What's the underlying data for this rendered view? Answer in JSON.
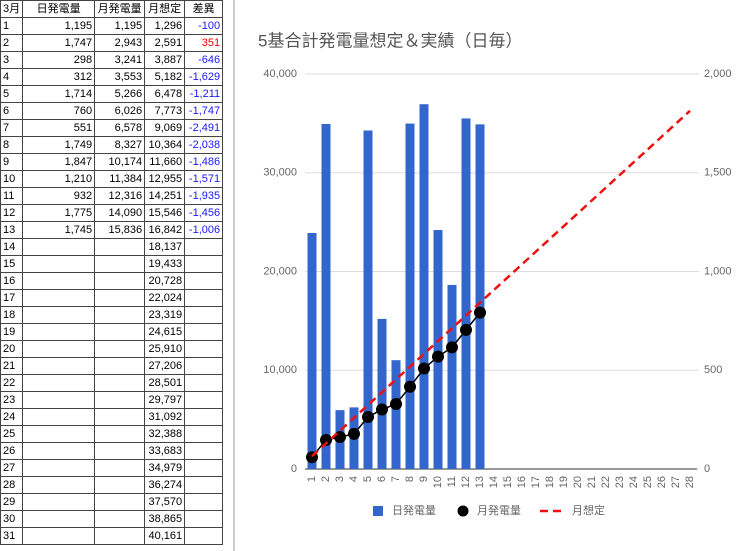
{
  "table": {
    "header": [
      "3月",
      "日発電量",
      "月発電量",
      "月想定",
      "差異"
    ],
    "rows": [
      [
        "1",
        "1,195",
        "1,195",
        "1,296",
        "-100"
      ],
      [
        "2",
        "1,747",
        "2,943",
        "2,591",
        "351"
      ],
      [
        "3",
        "298",
        "3,241",
        "3,887",
        "-646"
      ],
      [
        "4",
        "312",
        "3,553",
        "5,182",
        "-1,629"
      ],
      [
        "5",
        "1,714",
        "5,266",
        "6,478",
        "-1,211"
      ],
      [
        "6",
        "760",
        "6,026",
        "7,773",
        "-1,747"
      ],
      [
        "7",
        "551",
        "6,578",
        "9,069",
        "-2,491"
      ],
      [
        "8",
        "1,749",
        "8,327",
        "10,364",
        "-2,038"
      ],
      [
        "9",
        "1,847",
        "10,174",
        "11,660",
        "-1,486"
      ],
      [
        "10",
        "1,210",
        "11,384",
        "12,955",
        "-1,571"
      ],
      [
        "11",
        "932",
        "12,316",
        "14,251",
        "-1,935"
      ],
      [
        "12",
        "1,775",
        "14,090",
        "15,546",
        "-1,456"
      ],
      [
        "13",
        "1,745",
        "15,836",
        "16,842",
        "-1,006"
      ],
      [
        "14",
        null,
        null,
        "18,137",
        null
      ],
      [
        "15",
        null,
        null,
        "19,433",
        null
      ],
      [
        "16",
        null,
        null,
        "20,728",
        null
      ],
      [
        "17",
        null,
        null,
        "22,024",
        null
      ],
      [
        "18",
        null,
        null,
        "23,319",
        null
      ],
      [
        "19",
        null,
        null,
        "24,615",
        null
      ],
      [
        "20",
        null,
        null,
        "25,910",
        null
      ],
      [
        "21",
        null,
        null,
        "27,206",
        null
      ],
      [
        "22",
        null,
        null,
        "28,501",
        null
      ],
      [
        "23",
        null,
        null,
        "29,797",
        null
      ],
      [
        "24",
        null,
        null,
        "31,092",
        null
      ],
      [
        "25",
        null,
        null,
        "32,388",
        null
      ],
      [
        "26",
        null,
        null,
        "33,683",
        null
      ],
      [
        "27",
        null,
        null,
        "34,979",
        null
      ],
      [
        "28",
        null,
        null,
        "36,274",
        null
      ],
      [
        "29",
        null,
        null,
        "37,570",
        null
      ],
      [
        "30",
        null,
        null,
        "38,865",
        null
      ],
      [
        "31",
        null,
        null,
        "40,161",
        null
      ]
    ]
  },
  "chart_data": {
    "type": "combo",
    "title": "5基合計発電量想定＆実績（日毎）",
    "categories": [
      "1",
      "2",
      "3",
      "4",
      "5",
      "6",
      "7",
      "8",
      "9",
      "10",
      "11",
      "12",
      "13",
      "14",
      "15",
      "16",
      "17",
      "18",
      "19",
      "20",
      "21",
      "22",
      "23",
      "24",
      "25",
      "26",
      "27",
      "28"
    ],
    "series": [
      {
        "name": "日発電量",
        "type": "bar",
        "axis": "y2",
        "color": "#3366cc",
        "values": [
          1195,
          1747,
          298,
          312,
          1714,
          760,
          551,
          1749,
          1847,
          1210,
          932,
          1775,
          1745,
          null,
          null,
          null,
          null,
          null,
          null,
          null,
          null,
          null,
          null,
          null,
          null,
          null,
          null,
          null
        ]
      },
      {
        "name": "月発電量",
        "type": "line",
        "marker": "circle",
        "color": "#000000",
        "values": [
          1195,
          2943,
          3241,
          3553,
          5266,
          6026,
          6578,
          8327,
          10174,
          11384,
          12316,
          14090,
          15836,
          null,
          null,
          null,
          null,
          null,
          null,
          null,
          null,
          null,
          null,
          null,
          null,
          null,
          null,
          null
        ]
      },
      {
        "name": "月想定",
        "type": "line",
        "dashed": true,
        "color": "#ee1111",
        "values": [
          1296,
          2591,
          3887,
          5182,
          6478,
          7773,
          9069,
          10364,
          11660,
          12955,
          14251,
          15546,
          16842,
          18137,
          19433,
          20728,
          22024,
          23319,
          24615,
          25910,
          27206,
          28501,
          29797,
          31092,
          32388,
          33683,
          34979,
          36274
        ]
      }
    ],
    "ylim": [
      0,
      40000
    ],
    "yticks": [
      0,
      {
        "value": 10000,
        "label": "10,000"
      },
      {
        "value": 20000,
        "label": "20,000"
      },
      {
        "value": 30000,
        "label": "30,000"
      },
      {
        "value": 40000,
        "label": "40,000"
      }
    ],
    "y2lim": [
      0,
      2000
    ],
    "y2ticks": [
      0,
      500,
      {
        "value": 1000,
        "label": "1,000"
      },
      {
        "value": 1500,
        "label": "1,500"
      },
      {
        "value": 2000,
        "label": "2,000"
      }
    ],
    "grid": true,
    "legend": "bottom"
  }
}
